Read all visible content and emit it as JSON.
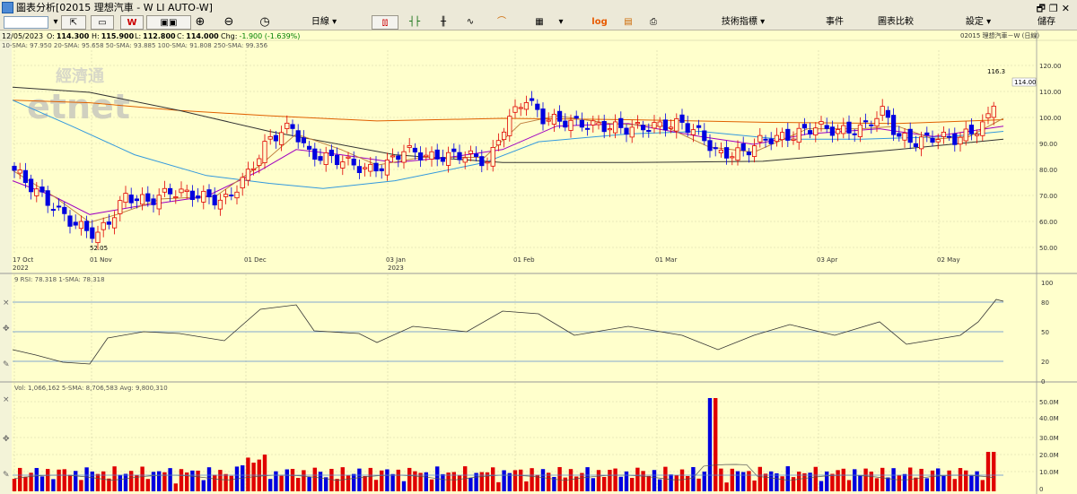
{
  "window": {
    "title": "圖表分析[02015 理想汽車 - W LI AUTO-W]",
    "controls": [
      "🗗",
      "❐",
      "✕"
    ]
  },
  "toolbar": {
    "period_label": "日線 ▾",
    "log_label": "log",
    "indicators_label": "技術指標 ▾",
    "events_label": "事件",
    "compare_label": "圖表比較",
    "settings_label": "設定 ▾",
    "save_label": "儲存"
  },
  "price_panel": {
    "date": "12/05/2023",
    "o_label": "O:",
    "o": "114.300",
    "h_label": "H:",
    "h": "115.900",
    "l_label": "L:",
    "l": "112.800",
    "c_label": "C:",
    "c": "114.000",
    "chg_label": "Chg:",
    "chg": "-1.900 (-1.639%)",
    "sma_text": "10-SMA: 97.950  20-SMA: 95.658  50-SMA: 93.885  100-SMA: 91.808  250-SMA: 99.356",
    "right_title": "02015 理想汽車－W (日線)",
    "watermark_cn": "經濟通",
    "watermark_en": "etnet",
    "last_price_tag": "114.00",
    "high_label": "116.3",
    "low_label": "52.05",
    "y_ticks": [
      "120.00",
      "110.00",
      "100.00",
      "90.00",
      "80.00",
      "70.00",
      "60.00",
      "50.00"
    ],
    "x_labels": [
      {
        "top": "17 Oct",
        "bottom": "2022"
      },
      {
        "top": "01 Nov",
        "bottom": ""
      },
      {
        "top": "01 Dec",
        "bottom": ""
      },
      {
        "top": "03 Jan",
        "bottom": "2023"
      },
      {
        "top": "01 Feb",
        "bottom": ""
      },
      {
        "top": "01 Mar",
        "bottom": ""
      },
      {
        "top": "03 Apr",
        "bottom": ""
      },
      {
        "top": "02 May",
        "bottom": ""
      }
    ]
  },
  "rsi_panel": {
    "header": "9 RSI: 78.318  1-SMA: 78.318",
    "y_ticks": [
      "100",
      "80",
      "50",
      "20",
      "0"
    ]
  },
  "volume_panel": {
    "header": "Vol: 1,066,162  5-SMA: 8,706,583  Avg: 9,800,310",
    "y_ticks": [
      "50.0M",
      "40.0M",
      "30.0M",
      "20.0M",
      "10.0M",
      "0"
    ]
  },
  "colors": {
    "background": "#ffffcc",
    "up": "#e00000",
    "down": "#0000e0",
    "sma10": "#c08040",
    "sma20": "#a000c0",
    "sma50": "#3399dd",
    "sma100": "#333333",
    "sma250": "#e06000"
  }
}
